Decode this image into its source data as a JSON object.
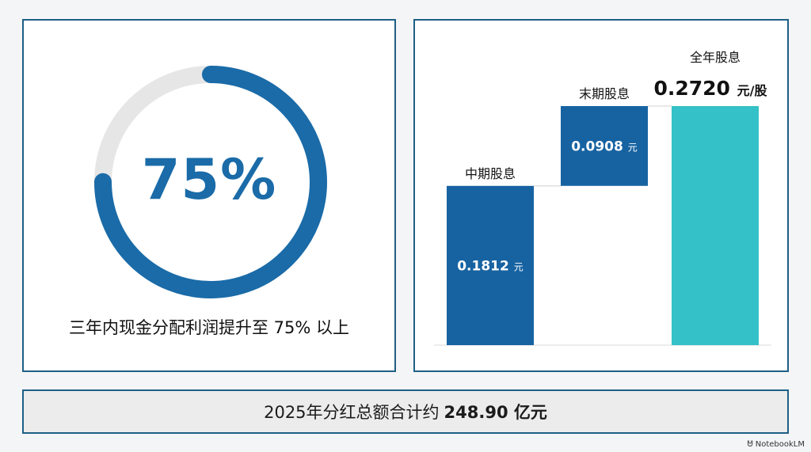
{
  "left": {
    "percent_label": "75%",
    "caption": "三年内现金分配利润提升至 75% 以上"
  },
  "chart_data": [
    {
      "type": "pie",
      "values": [
        75,
        25
      ],
      "categories": [
        "",
        ""
      ],
      "center_label": "75%",
      "colors": [
        "#1a6ba8",
        "#e6e6e6"
      ],
      "title": ""
    },
    {
      "type": "bar",
      "categories": [
        "中期股息",
        "末期股息",
        "全年股息"
      ],
      "values": [
        0.1812,
        0.0908,
        0.272
      ],
      "labels": [
        "0.1812 元",
        "0.0908 元",
        "0.2720 元/股"
      ],
      "value_parts": [
        "0.1812",
        "0.0908",
        "0.2720"
      ],
      "unit_parts": [
        "元",
        "元",
        "元/股"
      ],
      "ylim": [
        0,
        0.28
      ],
      "colors": [
        "#1763a2",
        "#1763a2",
        "#34c1c7"
      ],
      "title": ""
    }
  ],
  "bottom": {
    "prefix": "2025年分红总额合计约",
    "amount": "248.90 亿元"
  },
  "watermark": "NotebookLM"
}
